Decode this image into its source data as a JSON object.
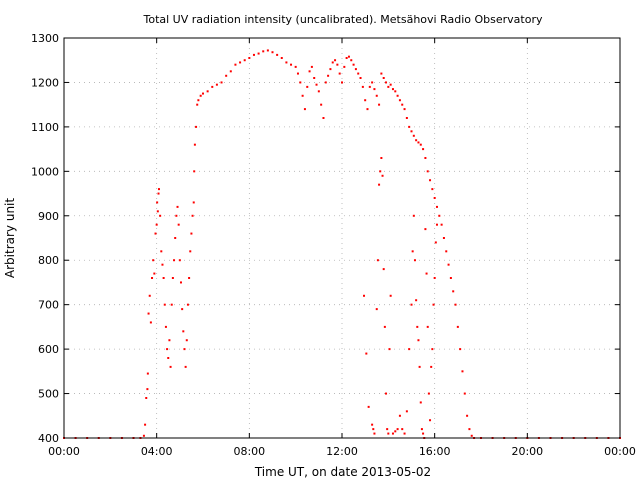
{
  "chart_data": {
    "type": "scatter",
    "title": "Total UV radiation intensity (uncalibrated). Metsähovi Radio Observatory",
    "xlabel": "Time UT, on date 2013-05-02",
    "ylabel": "Arbitrary unit",
    "xlim": [
      0,
      24
    ],
    "ylim": [
      400,
      1300
    ],
    "x_ticks": [
      0,
      4,
      8,
      12,
      16,
      20,
      24
    ],
    "x_tick_labels": [
      "00:00",
      "04:00",
      "08:00",
      "12:00",
      "16:00",
      "20:00",
      "00:00"
    ],
    "y_ticks": [
      400,
      500,
      600,
      700,
      800,
      900,
      1000,
      1100,
      1200,
      1300
    ],
    "y_tick_labels": [
      "400",
      "500",
      "600",
      "700",
      "800",
      "900",
      "1000",
      "1100",
      "1200",
      "1300"
    ],
    "grid": true,
    "marker_color": "#ff0000",
    "series": [
      {
        "x_unit": "hours UT",
        "points": [
          [
            0.0,
            400
          ],
          [
            0.5,
            400
          ],
          [
            1.0,
            400
          ],
          [
            1.5,
            400
          ],
          [
            2.0,
            400
          ],
          [
            2.5,
            400
          ],
          [
            3.0,
            400
          ],
          [
            3.3,
            400
          ],
          [
            3.45,
            405
          ],
          [
            3.5,
            430
          ],
          [
            3.55,
            490
          ],
          [
            3.6,
            510
          ],
          [
            3.62,
            545
          ],
          [
            3.65,
            680
          ],
          [
            3.7,
            720
          ],
          [
            3.75,
            660
          ],
          [
            3.8,
            760
          ],
          [
            3.85,
            800
          ],
          [
            3.9,
            770
          ],
          [
            3.95,
            860
          ],
          [
            4.0,
            880
          ],
          [
            4.02,
            930
          ],
          [
            4.05,
            910
          ],
          [
            4.08,
            950
          ],
          [
            4.1,
            960
          ],
          [
            4.15,
            900
          ],
          [
            4.2,
            820
          ],
          [
            4.25,
            790
          ],
          [
            4.3,
            760
          ],
          [
            4.35,
            700
          ],
          [
            4.4,
            650
          ],
          [
            4.45,
            600
          ],
          [
            4.5,
            580
          ],
          [
            4.55,
            620
          ],
          [
            4.6,
            560
          ],
          [
            4.65,
            700
          ],
          [
            4.7,
            760
          ],
          [
            4.75,
            800
          ],
          [
            4.8,
            850
          ],
          [
            4.85,
            900
          ],
          [
            4.9,
            920
          ],
          [
            4.95,
            880
          ],
          [
            5.0,
            800
          ],
          [
            5.05,
            750
          ],
          [
            5.1,
            690
          ],
          [
            5.15,
            640
          ],
          [
            5.2,
            600
          ],
          [
            5.25,
            560
          ],
          [
            5.3,
            620
          ],
          [
            5.35,
            700
          ],
          [
            5.4,
            760
          ],
          [
            5.45,
            820
          ],
          [
            5.5,
            860
          ],
          [
            5.55,
            900
          ],
          [
            5.6,
            930
          ],
          [
            5.62,
            1000
          ],
          [
            5.65,
            1060
          ],
          [
            5.7,
            1100
          ],
          [
            5.75,
            1150
          ],
          [
            5.8,
            1160
          ],
          [
            5.9,
            1170
          ],
          [
            6.0,
            1175
          ],
          [
            6.2,
            1180
          ],
          [
            6.4,
            1190
          ],
          [
            6.6,
            1195
          ],
          [
            6.8,
            1200
          ],
          [
            7.0,
            1215
          ],
          [
            7.2,
            1225
          ],
          [
            7.4,
            1240
          ],
          [
            7.6,
            1245
          ],
          [
            7.8,
            1250
          ],
          [
            8.0,
            1255
          ],
          [
            8.2,
            1262
          ],
          [
            8.4,
            1265
          ],
          [
            8.6,
            1270
          ],
          [
            8.8,
            1272
          ],
          [
            9.0,
            1268
          ],
          [
            9.2,
            1262
          ],
          [
            9.4,
            1255
          ],
          [
            9.6,
            1245
          ],
          [
            9.8,
            1240
          ],
          [
            10.0,
            1235
          ],
          [
            10.1,
            1220
          ],
          [
            10.2,
            1200
          ],
          [
            10.3,
            1170
          ],
          [
            10.4,
            1140
          ],
          [
            10.5,
            1190
          ],
          [
            10.6,
            1225
          ],
          [
            10.7,
            1235
          ],
          [
            10.8,
            1210
          ],
          [
            10.9,
            1195
          ],
          [
            11.0,
            1180
          ],
          [
            11.1,
            1150
          ],
          [
            11.2,
            1120
          ],
          [
            11.3,
            1200
          ],
          [
            11.4,
            1215
          ],
          [
            11.5,
            1230
          ],
          [
            11.6,
            1245
          ],
          [
            11.7,
            1250
          ],
          [
            11.8,
            1240
          ],
          [
            11.9,
            1220
          ],
          [
            12.0,
            1200
          ],
          [
            12.1,
            1235
          ],
          [
            12.2,
            1255
          ],
          [
            12.3,
            1258
          ],
          [
            12.4,
            1250
          ],
          [
            12.5,
            1240
          ],
          [
            12.6,
            1230
          ],
          [
            12.7,
            1220
          ],
          [
            12.8,
            1210
          ],
          [
            12.9,
            1190
          ],
          [
            13.0,
            1160
          ],
          [
            13.1,
            1140
          ],
          [
            13.2,
            1190
          ],
          [
            13.3,
            1200
          ],
          [
            13.4,
            1185
          ],
          [
            13.5,
            1170
          ],
          [
            13.6,
            1150
          ],
          [
            13.7,
            1220
          ],
          [
            13.8,
            1210
          ],
          [
            13.9,
            1200
          ],
          [
            14.0,
            1190
          ],
          [
            14.1,
            1195
          ],
          [
            14.2,
            1185
          ],
          [
            14.3,
            1180
          ],
          [
            14.4,
            1170
          ],
          [
            14.5,
            1160
          ],
          [
            14.6,
            1150
          ],
          [
            14.7,
            1140
          ],
          [
            14.8,
            1120
          ],
          [
            14.9,
            1100
          ],
          [
            15.0,
            1090
          ],
          [
            15.1,
            1080
          ],
          [
            15.2,
            1070
          ],
          [
            15.3,
            1065
          ],
          [
            15.4,
            1060
          ],
          [
            15.5,
            1050
          ],
          [
            15.6,
            1030
          ],
          [
            15.7,
            1000
          ],
          [
            15.8,
            980
          ],
          [
            15.9,
            960
          ],
          [
            16.0,
            940
          ],
          [
            16.1,
            920
          ],
          [
            16.2,
            900
          ],
          [
            16.3,
            880
          ],
          [
            16.4,
            850
          ],
          [
            16.5,
            820
          ],
          [
            16.6,
            790
          ],
          [
            16.7,
            760
          ],
          [
            16.8,
            730
          ],
          [
            16.9,
            700
          ],
          [
            17.0,
            650
          ],
          [
            17.1,
            600
          ],
          [
            17.2,
            550
          ],
          [
            17.3,
            500
          ],
          [
            17.4,
            450
          ],
          [
            17.5,
            420
          ],
          [
            17.6,
            405
          ],
          [
            17.7,
            400
          ],
          [
            18.0,
            400
          ],
          [
            18.5,
            400
          ],
          [
            19.0,
            400
          ],
          [
            19.5,
            400
          ],
          [
            20.0,
            400
          ],
          [
            20.5,
            400
          ],
          [
            21.0,
            400
          ],
          [
            21.5,
            400
          ],
          [
            22.0,
            400
          ],
          [
            22.5,
            400
          ],
          [
            23.0,
            400
          ],
          [
            23.5,
            400
          ],
          [
            24.0,
            400
          ],
          [
            12.95,
            720
          ],
          [
            13.05,
            590
          ],
          [
            13.15,
            470
          ],
          [
            13.3,
            430
          ],
          [
            13.35,
            420
          ],
          [
            13.4,
            410
          ],
          [
            13.5,
            690
          ],
          [
            13.55,
            800
          ],
          [
            13.6,
            970
          ],
          [
            13.65,
            1000
          ],
          [
            13.7,
            1030
          ],
          [
            13.75,
            990
          ],
          [
            13.8,
            780
          ],
          [
            13.85,
            650
          ],
          [
            13.9,
            500
          ],
          [
            13.95,
            420
          ],
          [
            14.0,
            410
          ],
          [
            14.05,
            600
          ],
          [
            14.1,
            720
          ],
          [
            14.2,
            410
          ],
          [
            14.3,
            415
          ],
          [
            14.4,
            420
          ],
          [
            14.5,
            450
          ],
          [
            14.6,
            420
          ],
          [
            14.7,
            410
          ],
          [
            14.8,
            460
          ],
          [
            14.9,
            600
          ],
          [
            15.0,
            700
          ],
          [
            15.05,
            820
          ],
          [
            15.1,
            900
          ],
          [
            15.15,
            800
          ],
          [
            15.2,
            710
          ],
          [
            15.25,
            650
          ],
          [
            15.3,
            620
          ],
          [
            15.35,
            560
          ],
          [
            15.4,
            480
          ],
          [
            15.45,
            420
          ],
          [
            15.5,
            410
          ],
          [
            15.55,
            400
          ],
          [
            15.6,
            870
          ],
          [
            15.65,
            770
          ],
          [
            15.7,
            650
          ],
          [
            15.75,
            500
          ],
          [
            15.8,
            440
          ],
          [
            15.85,
            560
          ],
          [
            15.9,
            600
          ],
          [
            15.95,
            700
          ],
          [
            16.0,
            760
          ],
          [
            16.05,
            840
          ],
          [
            16.1,
            880
          ]
        ]
      }
    ]
  }
}
